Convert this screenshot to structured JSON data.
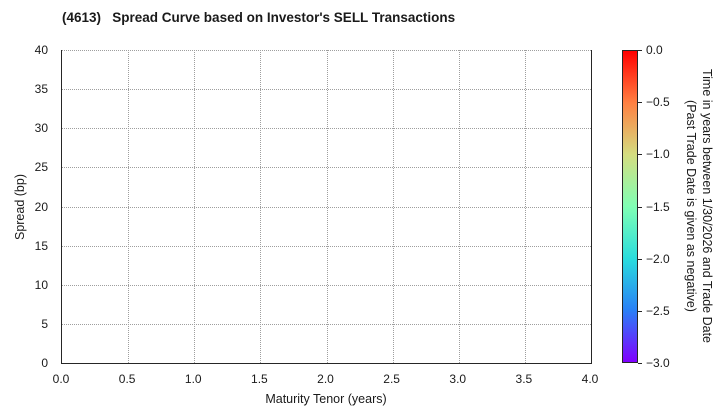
{
  "title": "(4613)   Spread Curve based on Investor's SELL Transactions",
  "colors": {
    "background": "#ffffff",
    "text": "#1a1a1a",
    "spine": "#262626",
    "grid": "#9e9e9e"
  },
  "chart_data": {
    "type": "scatter",
    "title": "(4613)   Spread Curve based on Investor's SELL Transactions",
    "xlabel": "Maturity Tenor (years)",
    "ylabel": "Spread (bp)",
    "xlim": [
      0.0,
      4.0
    ],
    "ylim": [
      0,
      40
    ],
    "x_tick_values": [
      0.0,
      0.5,
      1.0,
      1.5,
      2.0,
      2.5,
      3.0,
      3.5,
      4.0
    ],
    "x_tick_labels": [
      "0.0",
      "0.5",
      "1.0",
      "1.5",
      "2.0",
      "2.5",
      "3.0",
      "3.5",
      "4.0"
    ],
    "y_tick_values": [
      0,
      5,
      10,
      15,
      20,
      25,
      30,
      35,
      40
    ],
    "y_tick_labels": [
      "0",
      "5",
      "10",
      "15",
      "20",
      "25",
      "30",
      "35",
      "40"
    ],
    "grid": "dotted",
    "legend": "none",
    "series": [],
    "points": [],
    "colorbar": {
      "label_line1": "Time in years between 1/30/2026 and Trade Date",
      "label_line2": "(Past Trade Date is given as negative)",
      "range": [
        0.0,
        -3.0
      ],
      "tick_values": [
        0.0,
        -0.5,
        -1.0,
        -1.5,
        -2.0,
        -2.5,
        -3.0
      ],
      "tick_labels": [
        "0.0",
        "−0.5",
        "−1.0",
        "−1.5",
        "−2.0",
        "−2.5",
        "−3.0"
      ],
      "colormap": "rainbow",
      "gradient_stops_top_to_bottom": [
        "#ff0000",
        "#ff8042",
        "#d4dd80",
        "#80ffb4",
        "#2adddd",
        "#2a80f6",
        "#8000ff"
      ]
    }
  }
}
